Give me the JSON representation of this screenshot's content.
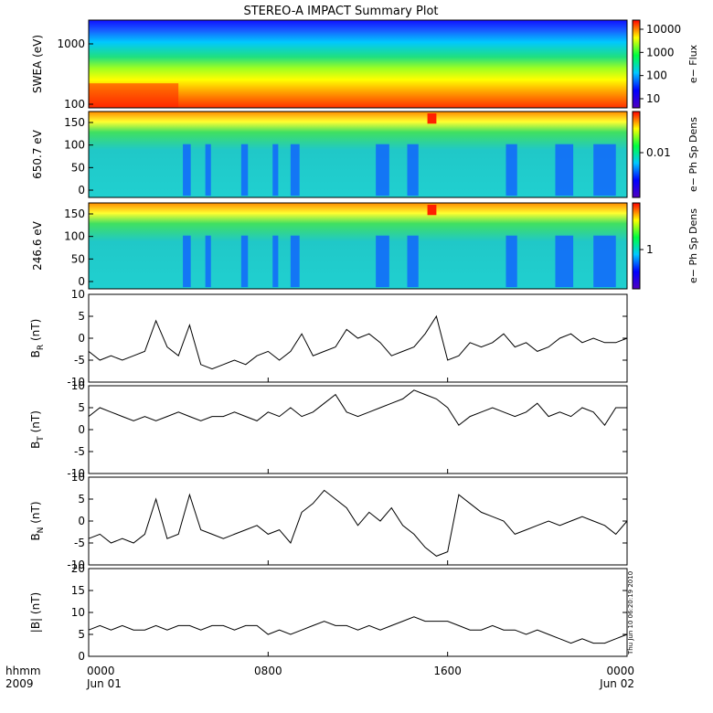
{
  "chart_data": {
    "type": "multi-panel time series",
    "title": "STEREO-A IMPACT Summary Plot",
    "timestamp": "Thu Jun 10 06:20:19 2010",
    "time_axis": {
      "corner_labels": [
        "hhmm",
        "2009"
      ],
      "ticks": [
        {
          "hours": 0,
          "label": "0000",
          "sub": "Jun 01"
        },
        {
          "hours": 8,
          "label": "0800",
          "sub": ""
        },
        {
          "hours": 16,
          "label": "1600",
          "sub": ""
        },
        {
          "hours": 24,
          "label": "0000",
          "sub": "Jun 02"
        }
      ],
      "range_hours": [
        0,
        24
      ]
    },
    "spectrograms": [
      {
        "ylabel": "SWEA (eV)",
        "y_scale": "log",
        "ylim": [
          90,
          2000
        ],
        "yticks": [
          "1000",
          "100"
        ],
        "colorbar_label": "e− Flux",
        "colorbar_ticks": [
          "10000",
          "1000",
          "100",
          "10"
        ]
      },
      {
        "ylabel": "650.7 eV",
        "ylim": [
          -5,
          180
        ],
        "yticks": [
          "150",
          "100",
          "50",
          "0"
        ],
        "colorbar_label": "e− Ph Sp Dens",
        "colorbar_ticks": [
          "0.01"
        ]
      },
      {
        "ylabel": "246.6 eV",
        "ylim": [
          -5,
          180
        ],
        "yticks": [
          "150",
          "100",
          "50",
          "0"
        ],
        "colorbar_label": "e− Ph Sp Dens",
        "colorbar_ticks": [
          "1"
        ]
      }
    ],
    "line_panels": [
      {
        "ylabel": "B",
        "ysub": "R",
        "yunit": " (nT)",
        "ylim": [
          -10,
          10
        ],
        "yticks": [
          "10",
          "5",
          "0",
          "-5",
          "-10"
        ],
        "x": [
          0,
          0.5,
          1,
          1.5,
          2,
          2.5,
          3,
          3.5,
          4,
          4.5,
          5,
          5.5,
          6,
          6.5,
          7,
          7.5,
          8,
          8.5,
          9,
          9.5,
          10,
          10.5,
          11,
          11.5,
          12,
          12.5,
          13,
          13.5,
          14,
          14.5,
          15,
          15.5,
          16,
          16.5,
          17,
          17.5,
          18,
          18.5,
          19,
          19.5,
          20,
          20.5,
          21,
          21.5,
          22,
          22.5,
          23,
          23.5,
          24
        ],
        "y": [
          -3,
          -5,
          -4,
          -5,
          -4,
          -3,
          4,
          -2,
          -4,
          3,
          -6,
          -7,
          -6,
          -5,
          -6,
          -4,
          -3,
          -5,
          -3,
          1,
          -4,
          -3,
          -2,
          2,
          0,
          1,
          -1,
          -4,
          -3,
          -2,
          1,
          5,
          -5,
          -4,
          -1,
          -2,
          -1,
          1,
          -2,
          -1,
          -3,
          -2,
          0,
          1,
          -1,
          0,
          -1,
          -1,
          0
        ]
      },
      {
        "ylabel": "B",
        "ysub": "T",
        "yunit": " (nT)",
        "ylim": [
          -10,
          10
        ],
        "yticks": [
          "10",
          "5",
          "0",
          "-5",
          "-10"
        ],
        "x": [
          0,
          0.5,
          1,
          1.5,
          2,
          2.5,
          3,
          3.5,
          4,
          4.5,
          5,
          5.5,
          6,
          6.5,
          7,
          7.5,
          8,
          8.5,
          9,
          9.5,
          10,
          10.5,
          11,
          11.5,
          12,
          12.5,
          13,
          13.5,
          14,
          14.5,
          15,
          15.5,
          16,
          16.5,
          17,
          17.5,
          18,
          18.5,
          19,
          19.5,
          20,
          20.5,
          21,
          21.5,
          22,
          22.5,
          23,
          23.5,
          24
        ],
        "y": [
          3,
          5,
          4,
          3,
          2,
          3,
          2,
          3,
          4,
          3,
          2,
          3,
          3,
          4,
          3,
          2,
          4,
          3,
          5,
          3,
          4,
          6,
          8,
          4,
          3,
          4,
          5,
          6,
          7,
          9,
          8,
          7,
          5,
          1,
          3,
          4,
          5,
          4,
          3,
          4,
          6,
          3,
          4,
          3,
          5,
          4,
          1,
          5,
          5
        ]
      },
      {
        "ylabel": "B",
        "ysub": "N",
        "yunit": " (nT)",
        "ylim": [
          -10,
          10
        ],
        "yticks": [
          "10",
          "5",
          "0",
          "-5",
          "-10"
        ],
        "x": [
          0,
          0.5,
          1,
          1.5,
          2,
          2.5,
          3,
          3.5,
          4,
          4.5,
          5,
          5.5,
          6,
          6.5,
          7,
          7.5,
          8,
          8.5,
          9,
          9.5,
          10,
          10.5,
          11,
          11.5,
          12,
          12.5,
          13,
          13.5,
          14,
          14.5,
          15,
          15.5,
          16,
          16.5,
          17,
          17.5,
          18,
          18.5,
          19,
          19.5,
          20,
          20.5,
          21,
          21.5,
          22,
          22.5,
          23,
          23.5,
          24
        ],
        "y": [
          -4,
          -3,
          -5,
          -4,
          -5,
          -3,
          5,
          -4,
          -3,
          6,
          -2,
          -3,
          -4,
          -3,
          -2,
          -1,
          -3,
          -2,
          -5,
          2,
          4,
          7,
          5,
          3,
          -1,
          2,
          0,
          3,
          -1,
          -3,
          -6,
          -8,
          -7,
          6,
          4,
          2,
          1,
          0,
          -3,
          -2,
          -1,
          0,
          -1,
          0,
          1,
          0,
          -1,
          -3,
          0
        ]
      },
      {
        "ylabel": "|B|",
        "ysub": "",
        "yunit": " (nT)",
        "ylim": [
          0,
          20
        ],
        "yticks": [
          "20",
          "15",
          "10",
          "5",
          "0"
        ],
        "x": [
          0,
          0.5,
          1,
          1.5,
          2,
          2.5,
          3,
          3.5,
          4,
          4.5,
          5,
          5.5,
          6,
          6.5,
          7,
          7.5,
          8,
          8.5,
          9,
          9.5,
          10,
          10.5,
          11,
          11.5,
          12,
          12.5,
          13,
          13.5,
          14,
          14.5,
          15,
          15.5,
          16,
          16.5,
          17,
          17.5,
          18,
          18.5,
          19,
          19.5,
          20,
          20.5,
          21,
          21.5,
          22,
          22.5,
          23,
          23.5,
          24
        ],
        "y": [
          6,
          7,
          6,
          7,
          6,
          6,
          7,
          6,
          7,
          7,
          6,
          7,
          7,
          6,
          7,
          7,
          5,
          6,
          5,
          6,
          7,
          8,
          7,
          7,
          6,
          7,
          6,
          7,
          8,
          9,
          8,
          8,
          8,
          7,
          6,
          6,
          7,
          6,
          6,
          5,
          6,
          5,
          4,
          3,
          4,
          3,
          3,
          4,
          5
        ]
      }
    ],
    "colors": {
      "spectrum": [
        "#6a0dad",
        "#0000ff",
        "#00bfff",
        "#00ff00",
        "#ffff00",
        "#ff8c00",
        "#ff0000"
      ]
    }
  }
}
